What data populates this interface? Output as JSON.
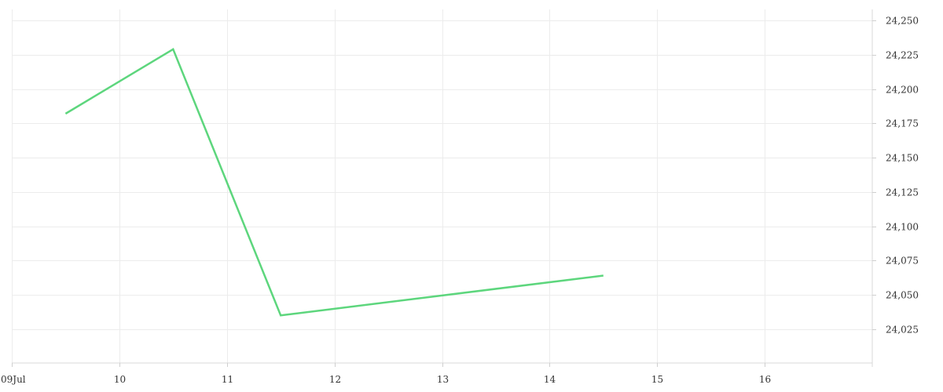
{
  "chart_data": {
    "type": "line",
    "title": "",
    "xlabel": "",
    "ylabel": "",
    "x_axis": {
      "type": "date",
      "range": [
        "2024-07-09",
        "2024-07-17"
      ],
      "ticks": [
        {
          "date": "2024-07-09",
          "label": "09Jul"
        },
        {
          "date": "2024-07-10",
          "label": "10"
        },
        {
          "date": "2024-07-11",
          "label": "11"
        },
        {
          "date": "2024-07-12",
          "label": "12"
        },
        {
          "date": "2024-07-13",
          "label": "13"
        },
        {
          "date": "2024-07-14",
          "label": "14"
        },
        {
          "date": "2024-07-15",
          "label": "15"
        },
        {
          "date": "2024-07-16",
          "label": "16"
        }
      ]
    },
    "y_axis": {
      "position": "right",
      "range": [
        24000,
        24260
      ],
      "ticks": [
        24025,
        24050,
        24075,
        24100,
        24125,
        24150,
        24175,
        24200,
        24225,
        24250
      ],
      "tick_labels": [
        "24,025",
        "24,050",
        "24,075",
        "24,100",
        "24,125",
        "24,150",
        "24,175",
        "24,200",
        "24,225",
        "24,250"
      ]
    },
    "grid": true,
    "legend": "none",
    "series": [
      {
        "color": "#5dd67d",
        "points": [
          {
            "x": "2024-07-09 12:00",
            "y": 24182
          },
          {
            "x": "2024-07-10 12:00",
            "y": 24229
          },
          {
            "x": "2024-07-11 12:00",
            "y": 24035
          },
          {
            "x": "2024-07-14 12:00",
            "y": 24064
          }
        ]
      }
    ]
  }
}
